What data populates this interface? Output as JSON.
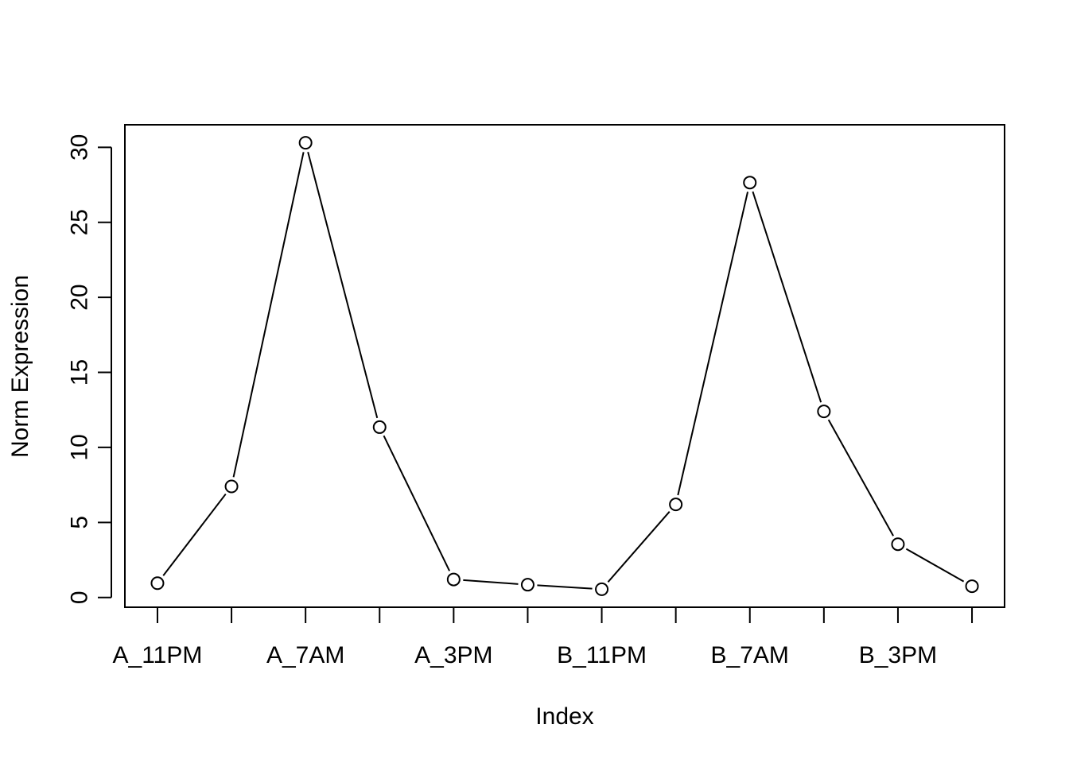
{
  "chart_data": {
    "type": "line",
    "title": "",
    "xlabel": "Index",
    "ylabel": "Norm Expression",
    "x": [
      1,
      2,
      3,
      4,
      5,
      6,
      7,
      8,
      9,
      10,
      11,
      12
    ],
    "x_tick_positions": [
      1,
      2,
      3,
      4,
      5,
      6,
      7,
      8,
      9,
      10,
      11,
      12
    ],
    "x_tick_labels": [
      "A_11PM",
      "",
      "A_7AM",
      "",
      "A_3PM",
      "",
      "B_11PM",
      "",
      "B_7AM",
      "",
      "B_3PM",
      ""
    ],
    "y_ticks": [
      0,
      5,
      10,
      15,
      20,
      25,
      30
    ],
    "y_tick_labels": [
      "0",
      "5",
      "10",
      "15",
      "20",
      "25",
      "30"
    ],
    "xlim": [
      0.56,
      12.44
    ],
    "ylim": [
      -0.65,
      31.5
    ],
    "grid": false,
    "legend": "none",
    "series": [
      {
        "values": [
          0.95,
          7.4,
          30.3,
          11.35,
          1.2,
          0.85,
          0.55,
          6.2,
          27.65,
          12.4,
          3.55,
          0.75
        ],
        "color": "#000000",
        "marker": "open-circle"
      }
    ]
  }
}
